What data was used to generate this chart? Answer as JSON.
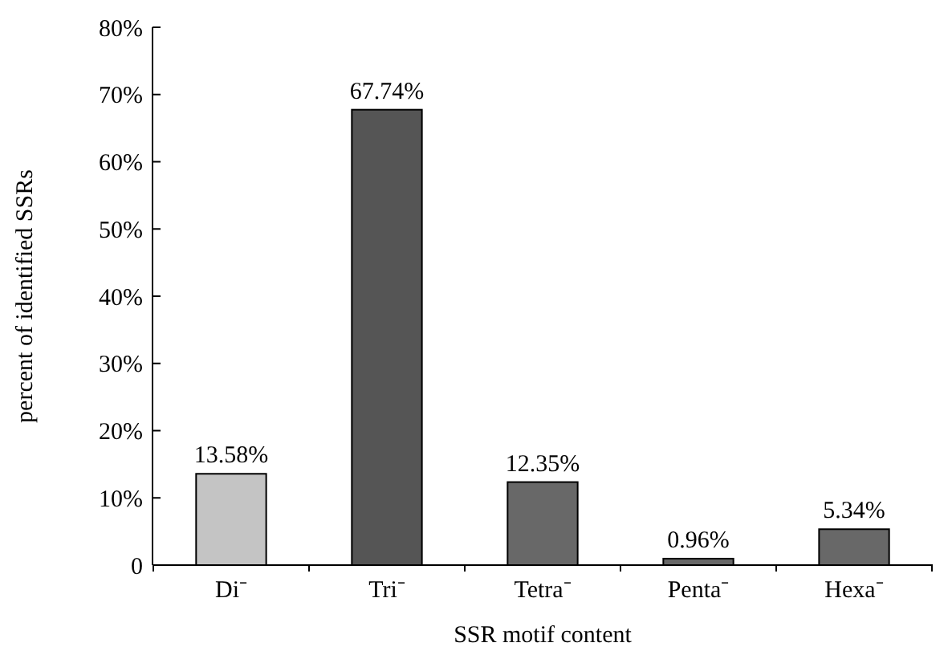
{
  "chart_data": {
    "type": "bar",
    "xlabel": "SSR motif content",
    "ylabel": "percent of identified SSRs",
    "categories": [
      "Di⁻",
      "Tri⁻",
      "Tetra⁻",
      "Penta⁻",
      "Hexa⁻"
    ],
    "values": [
      13.58,
      67.74,
      12.35,
      0.96,
      5.34
    ],
    "colors": [
      "#c4c4c4",
      "#555555",
      "#686868",
      "#686868",
      "#686868"
    ],
    "value_labels": [
      "13.58%",
      "67.74%",
      "12.35%",
      "0.96%",
      "5.34%"
    ],
    "ylim": [
      0,
      80
    ],
    "yticks": [
      {
        "value": 0,
        "label": "0"
      },
      {
        "value": 10,
        "label": "10%"
      },
      {
        "value": 20,
        "label": "20%"
      },
      {
        "value": 30,
        "label": "30%"
      },
      {
        "value": 40,
        "label": "40%"
      },
      {
        "value": 50,
        "label": "50%"
      },
      {
        "value": 60,
        "label": "60%"
      },
      {
        "value": 70,
        "label": "70%"
      },
      {
        "value": 80,
        "label": "80%"
      }
    ],
    "grid": false
  }
}
